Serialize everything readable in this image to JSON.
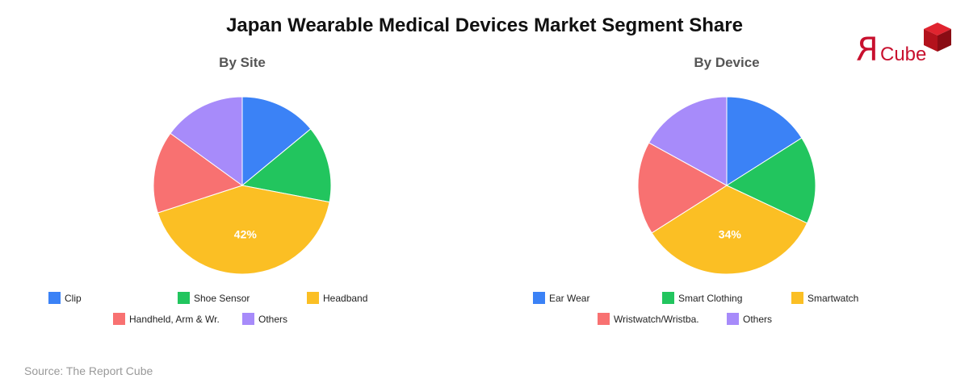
{
  "title": "Japan Wearable Medical Devices Market Segment Share",
  "source": "Source: The Report Cube",
  "logo": {
    "mark": "R",
    "text": "Cube",
    "color": "#c8102e"
  },
  "chart_data": [
    {
      "type": "pie",
      "title": "By Site",
      "labels": [
        "Clip",
        "Shoe Sensor",
        "Headband",
        "Handheld, Arm & Wr.",
        "Others"
      ],
      "values": [
        14,
        14,
        42,
        15,
        15
      ],
      "colors": [
        "#3b82f6",
        "#22c55e",
        "#fbbf24",
        "#f87171",
        "#a78bfa"
      ],
      "data_labels": [
        "",
        "",
        "42%",
        "",
        ""
      ],
      "legend_position": "bottom"
    },
    {
      "type": "pie",
      "title": "By Device",
      "labels": [
        "Ear Wear",
        "Smart Clothing",
        "Smartwatch",
        "Wristwatch/Wristba.",
        "Others"
      ],
      "values": [
        16,
        16,
        34,
        17,
        17
      ],
      "colors": [
        "#3b82f6",
        "#22c55e",
        "#fbbf24",
        "#f87171",
        "#a78bfa"
      ],
      "data_labels": [
        "",
        "",
        "34%",
        "",
        ""
      ],
      "legend_position": "bottom"
    }
  ]
}
